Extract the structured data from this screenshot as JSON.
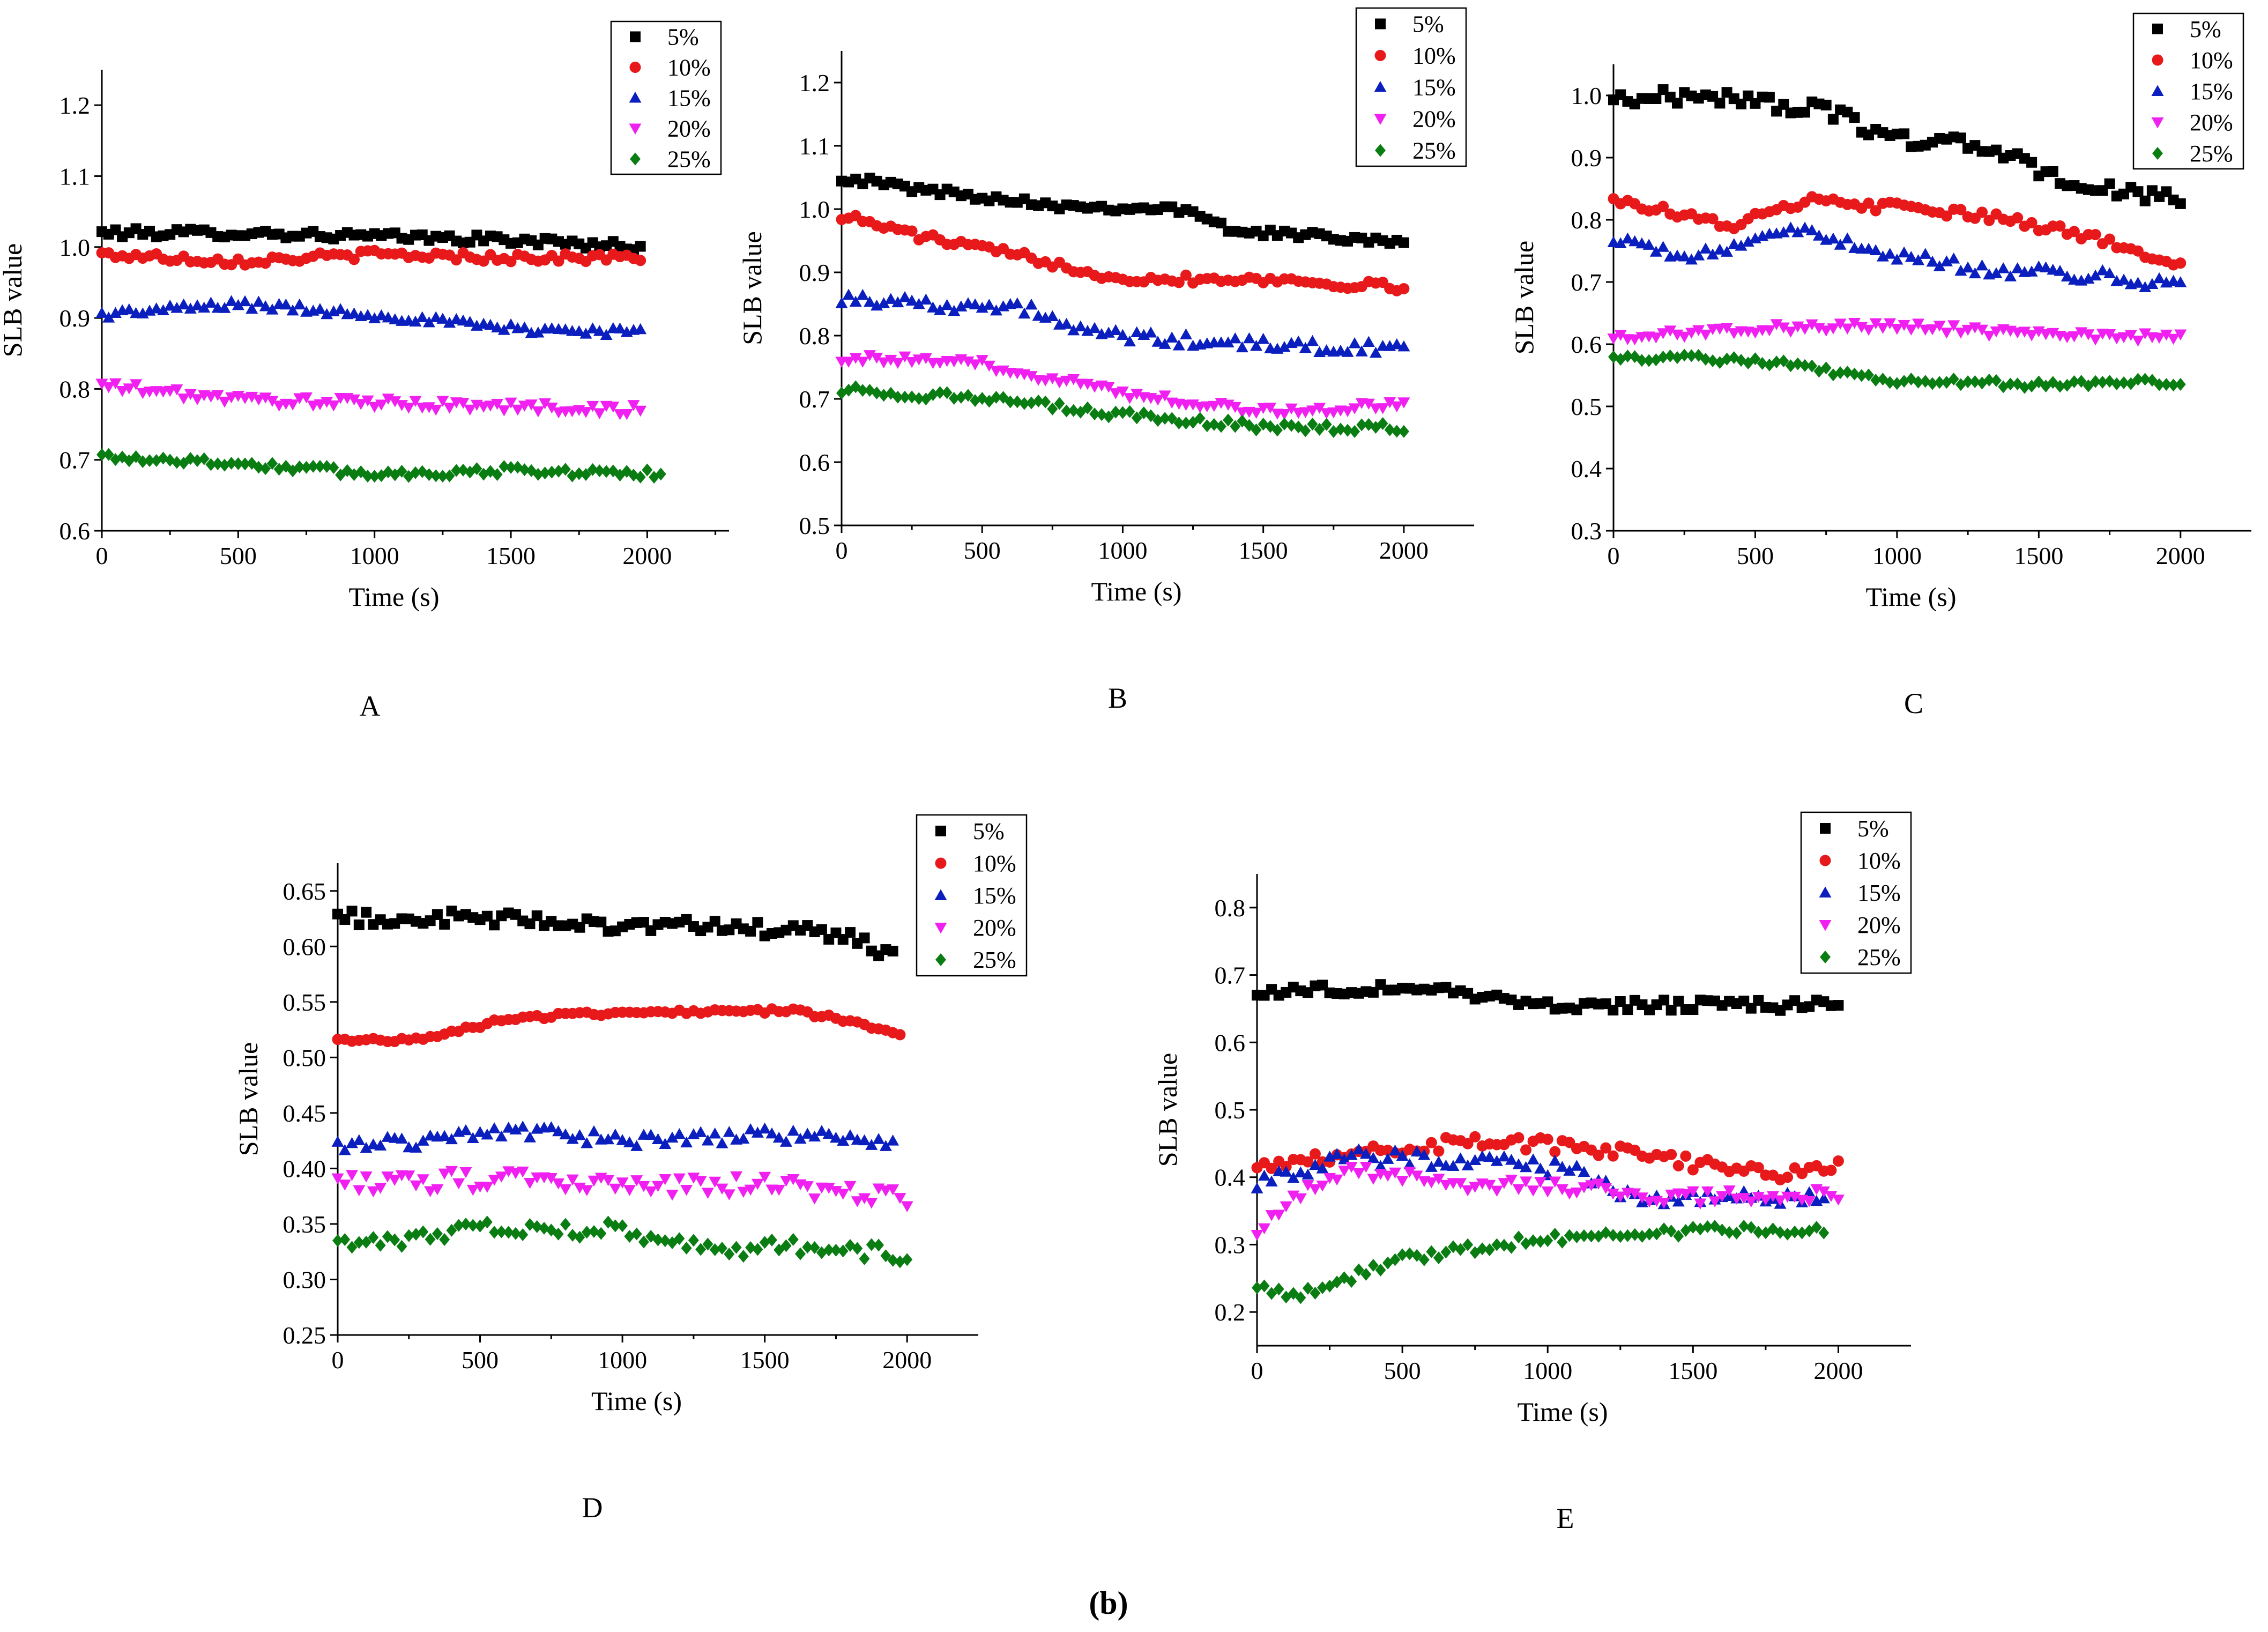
{
  "figure_caption": "(b)",
  "chart_data": [
    {
      "type": "scatter",
      "panel_label": "A",
      "xlabel": "Time (s)",
      "ylabel": "SLB value",
      "xlim": [
        0,
        2300
      ],
      "ylim": [
        0.6,
        1.25
      ],
      "xticks": [
        0,
        500,
        1000,
        1500,
        2000
      ],
      "yticks": [
        0.6,
        0.7,
        0.8,
        0.9,
        1.0,
        1.1,
        1.2
      ],
      "ytick_decimals": 1,
      "legend_position": "top-right",
      "grid": false,
      "series": [
        {
          "name": "5%",
          "marker": "square",
          "color": "#000000",
          "start": 0,
          "step": 25,
          "count": 80,
          "anchors": [
            [
              0,
              1.02
            ],
            [
              500,
              1.02
            ],
            [
              1000,
              1.015
            ],
            [
              1500,
              1.01
            ],
            [
              2000,
              1.0
            ]
          ],
          "noise": 0.006
        },
        {
          "name": "10%",
          "marker": "circle",
          "color": "#e8191b",
          "start": 0,
          "step": 25,
          "count": 80,
          "anchors": [
            [
              0,
              0.99
            ],
            [
              500,
              0.98
            ],
            [
              1000,
              0.99
            ],
            [
              1500,
              0.985
            ],
            [
              2000,
              0.985
            ]
          ],
          "noise": 0.006
        },
        {
          "name": "15%",
          "marker": "triangle-up",
          "color": "#0b1fbf",
          "start": 0,
          "step": 25,
          "count": 80,
          "anchors": [
            [
              0,
              0.905
            ],
            [
              500,
              0.92
            ],
            [
              1000,
              0.905
            ],
            [
              1500,
              0.885
            ],
            [
              2000,
              0.88
            ]
          ],
          "noise": 0.006
        },
        {
          "name": "20%",
          "marker": "triangle-down",
          "color": "#f020f0",
          "start": 0,
          "step": 25,
          "count": 80,
          "anchors": [
            [
              0,
              0.805
            ],
            [
              500,
              0.785
            ],
            [
              1000,
              0.78
            ],
            [
              1500,
              0.775
            ],
            [
              2000,
              0.77
            ]
          ],
          "noise": 0.007
        },
        {
          "name": "25%",
          "marker": "diamond",
          "color": "#0a7d12",
          "start": 0,
          "step": 25,
          "count": 83,
          "anchors": [
            [
              0,
              0.705
            ],
            [
              500,
              0.695
            ],
            [
              1000,
              0.68
            ],
            [
              1500,
              0.685
            ],
            [
              2050,
              0.68
            ]
          ],
          "noise": 0.006
        }
      ]
    },
    {
      "type": "scatter",
      "panel_label": "B",
      "xlabel": "Time (s)",
      "ylabel": "SLB value",
      "xlim": [
        0,
        2250
      ],
      "ylim": [
        0.5,
        1.25
      ],
      "xticks": [
        0,
        500,
        1000,
        1500,
        2000
      ],
      "yticks": [
        0.5,
        0.6,
        0.7,
        0.8,
        0.9,
        1.0,
        1.1,
        1.2
      ],
      "ytick_decimals": 1,
      "legend_position": "top-right",
      "grid": false,
      "series": [
        {
          "name": "5%",
          "marker": "square",
          "color": "#000000",
          "start": 0,
          "step": 25,
          "count": 81,
          "anchors": [
            [
              0,
              1.05
            ],
            [
              300,
              1.03
            ],
            [
              800,
              1.005
            ],
            [
              1200,
              1.0
            ],
            [
              1400,
              0.965
            ],
            [
              2000,
              0.95
            ]
          ],
          "noise": 0.006
        },
        {
          "name": "10%",
          "marker": "circle",
          "color": "#e8191b",
          "start": 0,
          "step": 25,
          "count": 81,
          "anchors": [
            [
              0,
              0.99
            ],
            [
              300,
              0.955
            ],
            [
              700,
              0.92
            ],
            [
              1000,
              0.89
            ],
            [
              1500,
              0.89
            ],
            [
              2000,
              0.875
            ]
          ],
          "noise": 0.007
        },
        {
          "name": "15%",
          "marker": "triangle-up",
          "color": "#0b1fbf",
          "start": 0,
          "step": 25,
          "count": 81,
          "anchors": [
            [
              0,
              0.86
            ],
            [
              700,
              0.84
            ],
            [
              800,
              0.81
            ],
            [
              1100,
              0.795
            ],
            [
              1500,
              0.785
            ],
            [
              2000,
              0.78
            ]
          ],
          "noise": 0.01
        },
        {
          "name": "20%",
          "marker": "triangle-down",
          "color": "#f020f0",
          "start": 0,
          "step": 25,
          "count": 81,
          "anchors": [
            [
              0,
              0.765
            ],
            [
              500,
              0.755
            ],
            [
              1000,
              0.71
            ],
            [
              1500,
              0.68
            ],
            [
              2000,
              0.69
            ]
          ],
          "noise": 0.007
        },
        {
          "name": "25%",
          "marker": "diamond",
          "color": "#0a7d12",
          "start": 0,
          "step": 25,
          "count": 81,
          "anchors": [
            [
              0,
              0.715
            ],
            [
              500,
              0.7
            ],
            [
              1000,
              0.675
            ],
            [
              1500,
              0.655
            ],
            [
              2000,
              0.655
            ]
          ],
          "noise": 0.007
        }
      ]
    },
    {
      "type": "scatter",
      "panel_label": "C",
      "xlabel": "Time (s)",
      "ylabel": "SLB value",
      "xlim": [
        0,
        2250
      ],
      "ylim": [
        0.3,
        1.05
      ],
      "xticks": [
        0,
        500,
        1000,
        1500,
        2000
      ],
      "yticks": [
        0.3,
        0.4,
        0.5,
        0.6,
        0.7,
        0.8,
        0.9,
        1.0
      ],
      "ytick_decimals": 1,
      "legend_position": "top-right",
      "grid": false,
      "series": [
        {
          "name": "5%",
          "marker": "square",
          "color": "#000000",
          "start": 0,
          "step": 25,
          "count": 81,
          "anchors": [
            [
              0,
              0.995
            ],
            [
              350,
              1.0
            ],
            [
              750,
              0.975
            ],
            [
              1000,
              0.93
            ],
            [
              1300,
              0.92
            ],
            [
              1600,
              0.86
            ],
            [
              2000,
              0.83
            ]
          ],
          "noise": 0.012
        },
        {
          "name": "10%",
          "marker": "circle",
          "color": "#e8191b",
          "start": 0,
          "step": 25,
          "count": 81,
          "anchors": [
            [
              0,
              0.835
            ],
            [
              400,
              0.79
            ],
            [
              700,
              0.83
            ],
            [
              1000,
              0.82
            ],
            [
              1400,
              0.8
            ],
            [
              1700,
              0.77
            ],
            [
              2000,
              0.73
            ]
          ],
          "noise": 0.008
        },
        {
          "name": "15%",
          "marker": "triangle-up",
          "color": "#0b1fbf",
          "start": 0,
          "step": 25,
          "count": 81,
          "anchors": [
            [
              0,
              0.765
            ],
            [
              300,
              0.74
            ],
            [
              600,
              0.785
            ],
            [
              1000,
              0.745
            ],
            [
              1300,
              0.72
            ],
            [
              1700,
              0.71
            ],
            [
              2000,
              0.695
            ]
          ],
          "noise": 0.01
        },
        {
          "name": "20%",
          "marker": "triangle-down",
          "color": "#f020f0",
          "start": 0,
          "step": 25,
          "count": 81,
          "anchors": [
            [
              0,
              0.61
            ],
            [
              500,
              0.625
            ],
            [
              1000,
              0.63
            ],
            [
              1500,
              0.615
            ],
            [
              2000,
              0.61
            ]
          ],
          "noise": 0.007
        },
        {
          "name": "25%",
          "marker": "diamond",
          "color": "#0a7d12",
          "start": 0,
          "step": 25,
          "count": 81,
          "anchors": [
            [
              0,
              0.58
            ],
            [
              500,
              0.575
            ],
            [
              1000,
              0.54
            ],
            [
              1500,
              0.535
            ],
            [
              2000,
              0.54
            ]
          ],
          "noise": 0.006
        }
      ]
    },
    {
      "type": "scatter",
      "panel_label": "D",
      "xlabel": "Time (s)",
      "ylabel": "SLB value",
      "xlim": [
        0,
        2250
      ],
      "ylim": [
        0.25,
        0.675
      ],
      "xticks": [
        0,
        500,
        1000,
        1500,
        2000
      ],
      "yticks": [
        0.25,
        0.3,
        0.35,
        0.4,
        0.45,
        0.5,
        0.55,
        0.6,
        0.65
      ],
      "ytick_decimals": 2,
      "legend_position": "top-right",
      "grid": false,
      "series": [
        {
          "name": "5%",
          "marker": "square",
          "color": "#000000",
          "start": 0,
          "step": 25,
          "count": 79,
          "anchors": [
            [
              0,
              0.625
            ],
            [
              500,
              0.625
            ],
            [
              1000,
              0.62
            ],
            [
              1500,
              0.615
            ],
            [
              1800,
              0.61
            ],
            [
              1950,
              0.59
            ]
          ],
          "noise": 0.007
        },
        {
          "name": "10%",
          "marker": "circle",
          "color": "#e8191b",
          "start": 0,
          "step": 25,
          "count": 80,
          "anchors": [
            [
              0,
              0.515
            ],
            [
              300,
              0.517
            ],
            [
              600,
              0.535
            ],
            [
              1000,
              0.541
            ],
            [
              1600,
              0.542
            ],
            [
              1750,
              0.535
            ],
            [
              1975,
              0.522
            ]
          ],
          "noise": 0.002
        },
        {
          "name": "15%",
          "marker": "triangle-up",
          "color": "#0b1fbf",
          "start": 0,
          "step": 25,
          "count": 79,
          "anchors": [
            [
              0,
              0.42
            ],
            [
              300,
              0.425
            ],
            [
              600,
              0.435
            ],
            [
              1000,
              0.425
            ],
            [
              1500,
              0.43
            ],
            [
              1950,
              0.425
            ]
          ],
          "noise": 0.006
        },
        {
          "name": "20%",
          "marker": "triangle-down",
          "color": "#f020f0",
          "start": 0,
          "step": 25,
          "count": 81,
          "anchors": [
            [
              0,
              0.385
            ],
            [
              500,
              0.39
            ],
            [
              1000,
              0.385
            ],
            [
              1500,
              0.385
            ],
            [
              2000,
              0.375
            ]
          ],
          "noise": 0.009
        },
        {
          "name": "25%",
          "marker": "diamond",
          "color": "#0a7d12",
          "start": 0,
          "step": 25,
          "count": 81,
          "anchors": [
            [
              0,
              0.33
            ],
            [
              500,
              0.345
            ],
            [
              1000,
              0.345
            ],
            [
              1300,
              0.325
            ],
            [
              1600,
              0.33
            ],
            [
              2000,
              0.322
            ]
          ],
          "noise": 0.007
        }
      ]
    },
    {
      "type": "scatter",
      "panel_label": "E",
      "xlabel": "Time (s)",
      "ylabel": "SLB value",
      "xlim": [
        0,
        2250
      ],
      "ylim": [
        0.15,
        0.85
      ],
      "xticks": [
        0,
        500,
        1000,
        1500,
        2000
      ],
      "yticks": [
        0.2,
        0.3,
        0.4,
        0.5,
        0.6,
        0.7,
        0.8
      ],
      "ytick_decimals": 1,
      "legend_position": "top-right",
      "grid": false,
      "series": [
        {
          "name": "5%",
          "marker": "square",
          "color": "#000000",
          "start": 0,
          "step": 25,
          "count": 81,
          "anchors": [
            [
              0,
              0.675
            ],
            [
              400,
              0.68
            ],
            [
              600,
              0.68
            ],
            [
              1000,
              0.655
            ],
            [
              1500,
              0.655
            ],
            [
              2000,
              0.655
            ]
          ],
          "noise": 0.008
        },
        {
          "name": "10%",
          "marker": "circle",
          "color": "#e8191b",
          "start": 0,
          "step": 25,
          "count": 81,
          "anchors": [
            [
              0,
              0.42
            ],
            [
              400,
              0.44
            ],
            [
              800,
              0.455
            ],
            [
              1200,
              0.44
            ],
            [
              1500,
              0.42
            ],
            [
              1800,
              0.405
            ],
            [
              2000,
              0.42
            ]
          ],
          "noise": 0.01
        },
        {
          "name": "15%",
          "marker": "triangle-up",
          "color": "#0b1fbf",
          "start": 0,
          "step": 25,
          "count": 79,
          "anchors": [
            [
              0,
              0.39
            ],
            [
              300,
              0.43
            ],
            [
              700,
              0.425
            ],
            [
              1100,
              0.41
            ],
            [
              1350,
              0.36
            ],
            [
              1600,
              0.37
            ],
            [
              1950,
              0.37
            ]
          ],
          "noise": 0.012
        },
        {
          "name": "20%",
          "marker": "triangle-down",
          "color": "#f020f0",
          "start": 0,
          "step": 25,
          "count": 81,
          "anchors": [
            [
              0,
              0.32
            ],
            [
              100,
              0.36
            ],
            [
              300,
              0.41
            ],
            [
              700,
              0.39
            ],
            [
              1100,
              0.385
            ],
            [
              1400,
              0.37
            ],
            [
              2000,
              0.375
            ]
          ],
          "noise": 0.01
        },
        {
          "name": "25%",
          "marker": "diamond",
          "color": "#0a7d12",
          "start": 0,
          "step": 25,
          "count": 79,
          "anchors": [
            [
              0,
              0.24
            ],
            [
              150,
              0.225
            ],
            [
              500,
              0.28
            ],
            [
              1000,
              0.31
            ],
            [
              1500,
              0.32
            ],
            [
              1950,
              0.325
            ]
          ],
          "noise": 0.008
        }
      ]
    }
  ]
}
